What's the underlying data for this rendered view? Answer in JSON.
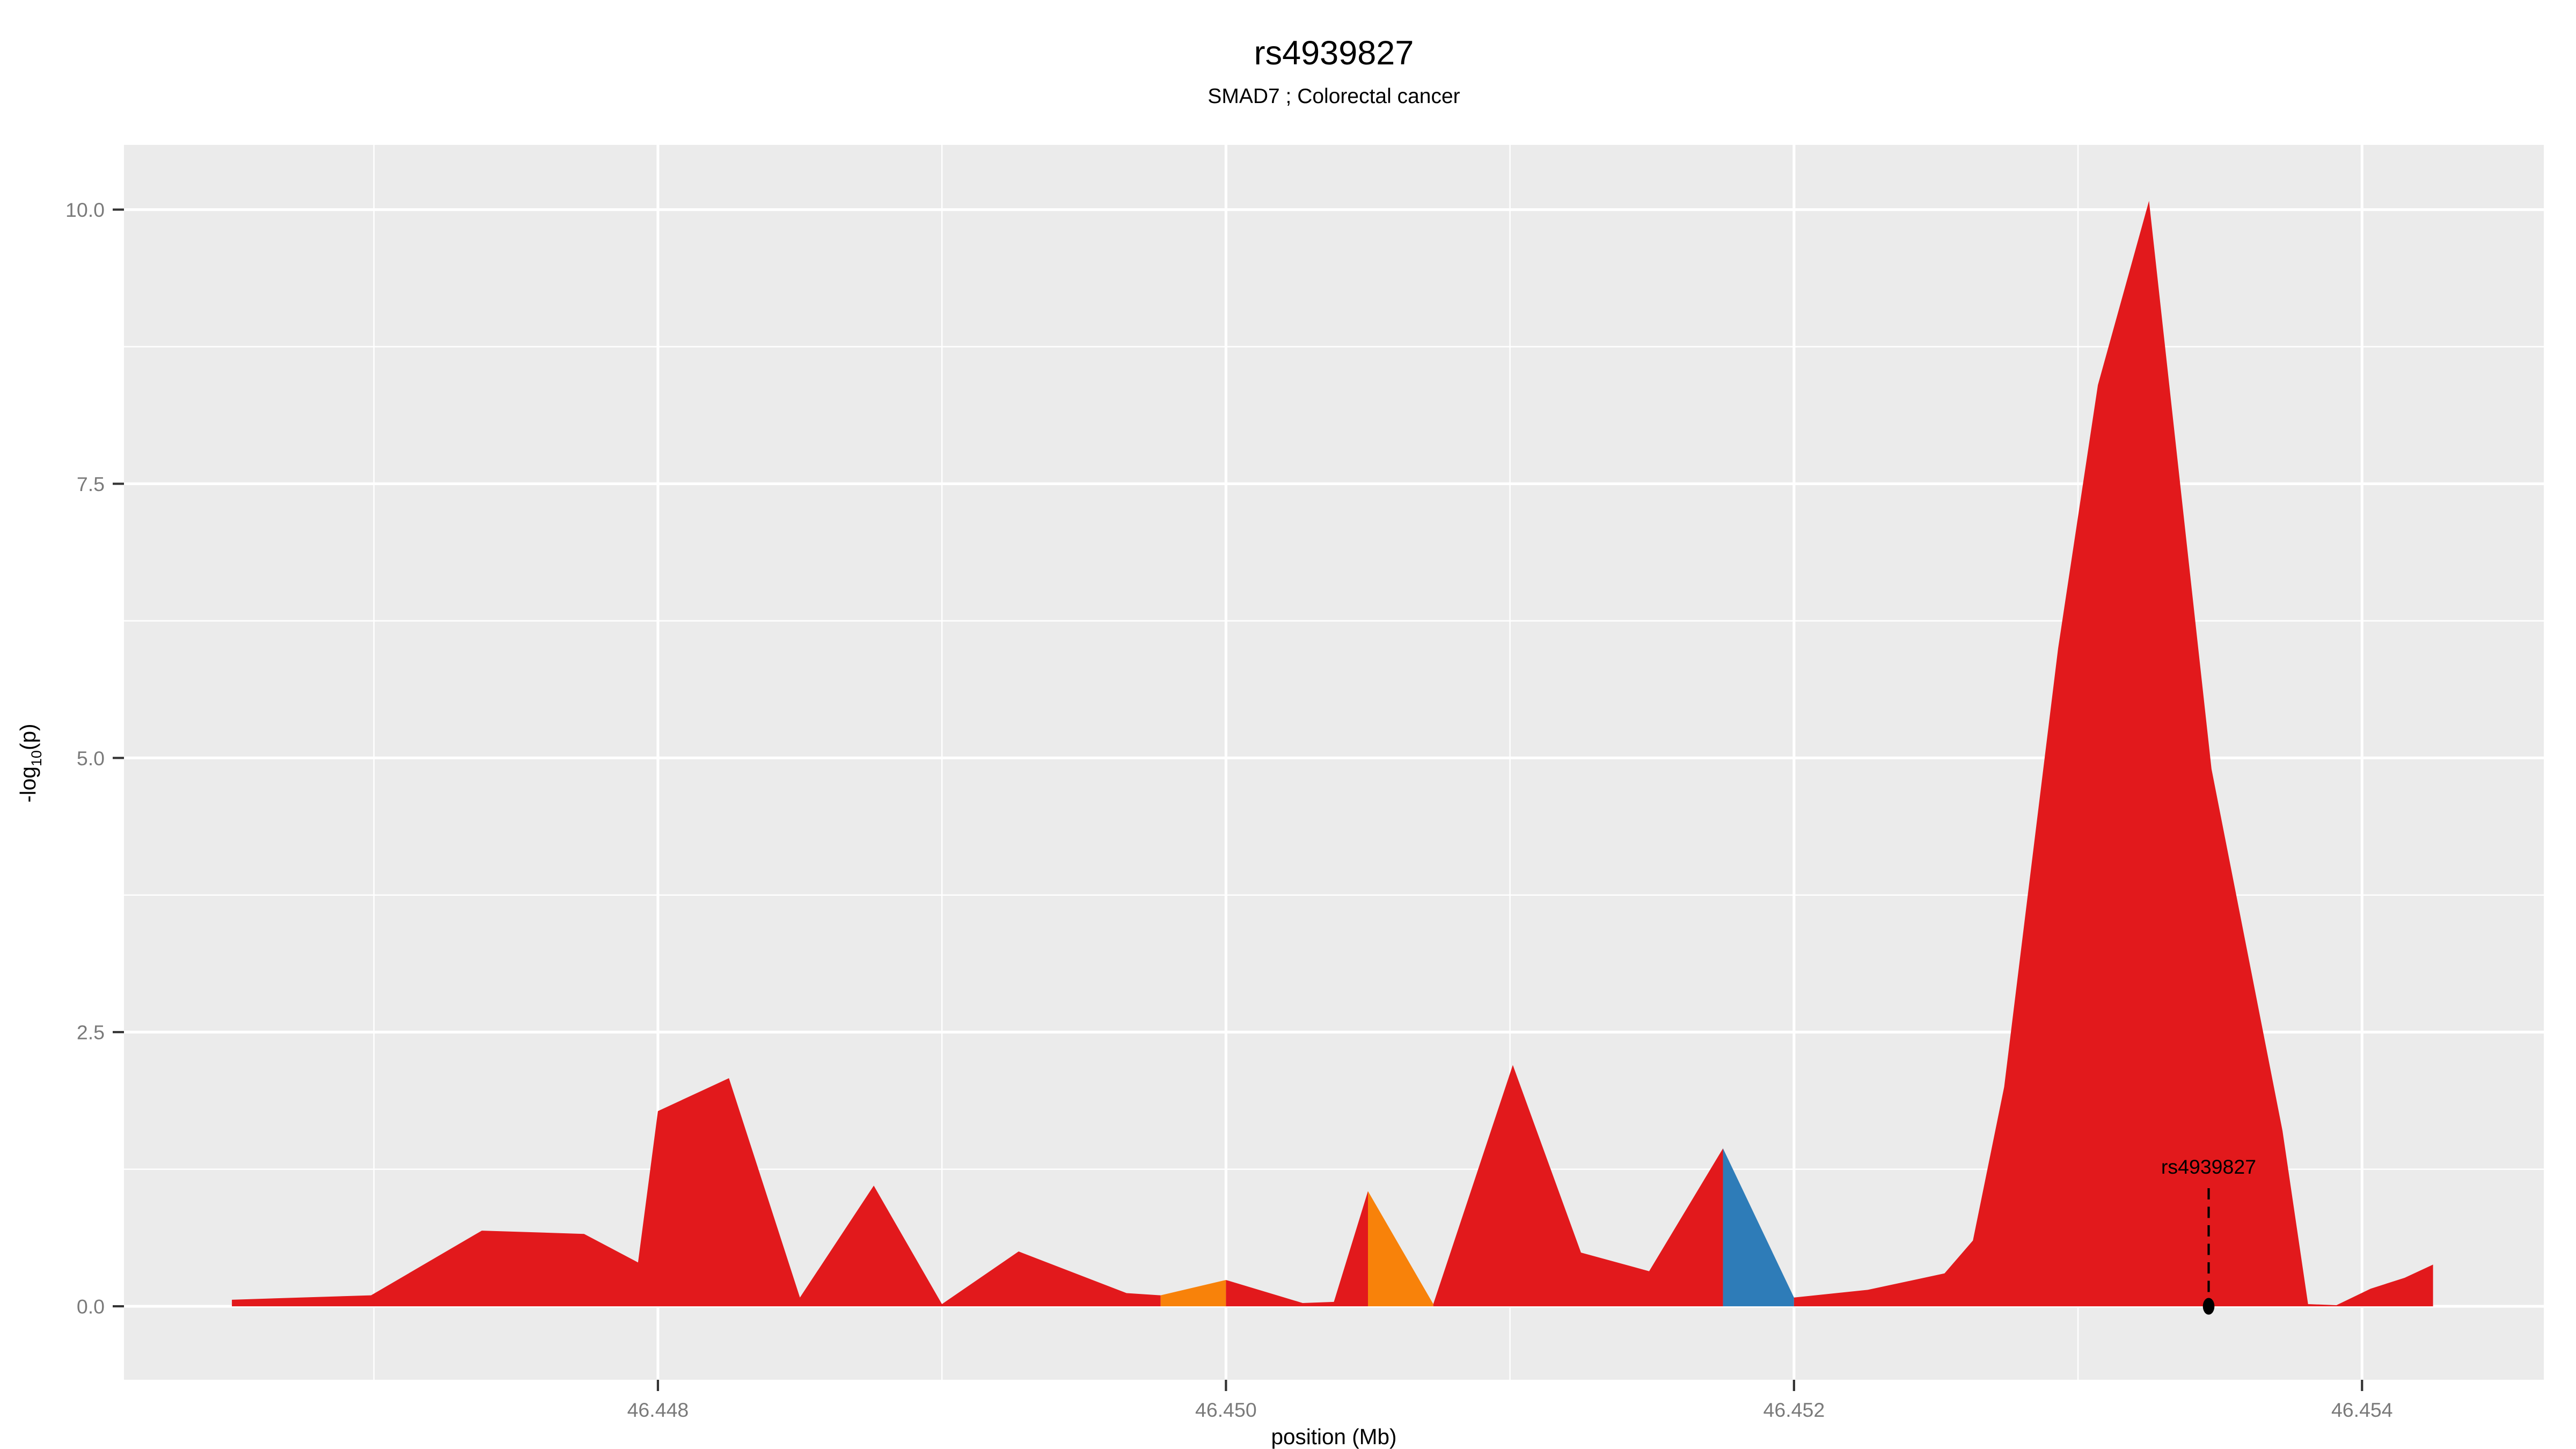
{
  "title": "rs4939827",
  "subtitle": "SMAD7 ; Colorectal cancer",
  "chart_data": {
    "type": "area",
    "title": "rs4939827",
    "subtitle": "SMAD7 ; Colorectal cancer",
    "xlabel": "position (Mb)",
    "ylabel": "-log10(p)",
    "ylabel_parts": {
      "pre": "-log",
      "sub": "10",
      "post": "(p)"
    },
    "xlim": [
      46.44612,
      46.45464
    ],
    "ylim": [
      -0.67,
      10.59
    ],
    "x_major_ticks": [
      46.448,
      46.45,
      46.452,
      46.454
    ],
    "x_tick_labels": [
      "46.448",
      "46.450",
      "46.452",
      "46.454"
    ],
    "x_minor_ticks": [
      46.447,
      46.449,
      46.451,
      46.453
    ],
    "y_major_ticks": [
      0,
      2.5,
      5,
      7.5,
      10
    ],
    "y_tick_labels": [
      "0.0",
      "2.5",
      "5.0",
      "7.5",
      "10.0"
    ],
    "y_minor_ticks": [
      1.25,
      3.75,
      6.25,
      8.75
    ],
    "grid": "on",
    "legend": "none",
    "panel_background": "#EBEBEB",
    "grid_color": "#FFFFFF",
    "tick_mark_color": "#333333",
    "tick_label_color": "#7A7A7A",
    "colors": {
      "red": "#E2191C",
      "orange": "#F8820A",
      "blue": "#2E7CB8"
    },
    "points": [
      [
        46.4465,
        0.06
      ],
      [
        46.44699,
        0.1
      ],
      [
        46.44738,
        0.69
      ],
      [
        46.44774,
        0.66
      ],
      [
        46.44793,
        0.4
      ],
      [
        46.448,
        1.78
      ],
      [
        46.44825,
        2.08
      ],
      [
        46.4485,
        0.08
      ],
      [
        46.44876,
        1.1
      ],
      [
        46.449,
        0.02
      ],
      [
        46.44927,
        0.5
      ],
      [
        46.44965,
        0.12
      ],
      [
        46.44977,
        0.1
      ],
      [
        46.45,
        0.24
      ],
      [
        46.45027,
        0.03
      ],
      [
        46.45038,
        0.04
      ],
      [
        46.4505,
        1.05
      ],
      [
        46.45073,
        0.02
      ],
      [
        46.45101,
        2.2
      ],
      [
        46.45125,
        0.49
      ],
      [
        46.45149,
        0.32
      ],
      [
        46.45175,
        1.44
      ],
      [
        46.452,
        0.08
      ],
      [
        46.45226,
        0.15
      ],
      [
        46.45253,
        0.3
      ],
      [
        46.45263,
        0.6
      ],
      [
        46.45274,
        2.0
      ],
      [
        46.45293,
        6.0
      ],
      [
        46.45307,
        8.4
      ],
      [
        46.45325,
        10.08
      ],
      [
        46.45347,
        4.9
      ],
      [
        46.45372,
        1.6
      ],
      [
        46.45381,
        0.02
      ],
      [
        46.45391,
        0.01
      ],
      [
        46.45403,
        0.16
      ],
      [
        46.45415,
        0.26
      ],
      [
        46.45425,
        0.38
      ]
    ],
    "segments": [
      {
        "color": "red",
        "from": 0,
        "to": 12
      },
      {
        "color": "orange",
        "from": 12,
        "to": 13
      },
      {
        "color": "red",
        "from": 13,
        "to": 16
      },
      {
        "color": "orange",
        "from": 16,
        "to": 17
      },
      {
        "color": "red",
        "from": 17,
        "to": 21
      },
      {
        "color": "blue",
        "from": 21,
        "to": 22
      },
      {
        "color": "red",
        "from": 22,
        "to": 36
      }
    ],
    "annotation": {
      "label": "rs4939827",
      "x": 46.45346,
      "y": 0,
      "marker": "black-dot",
      "line_style": "dashed"
    }
  }
}
